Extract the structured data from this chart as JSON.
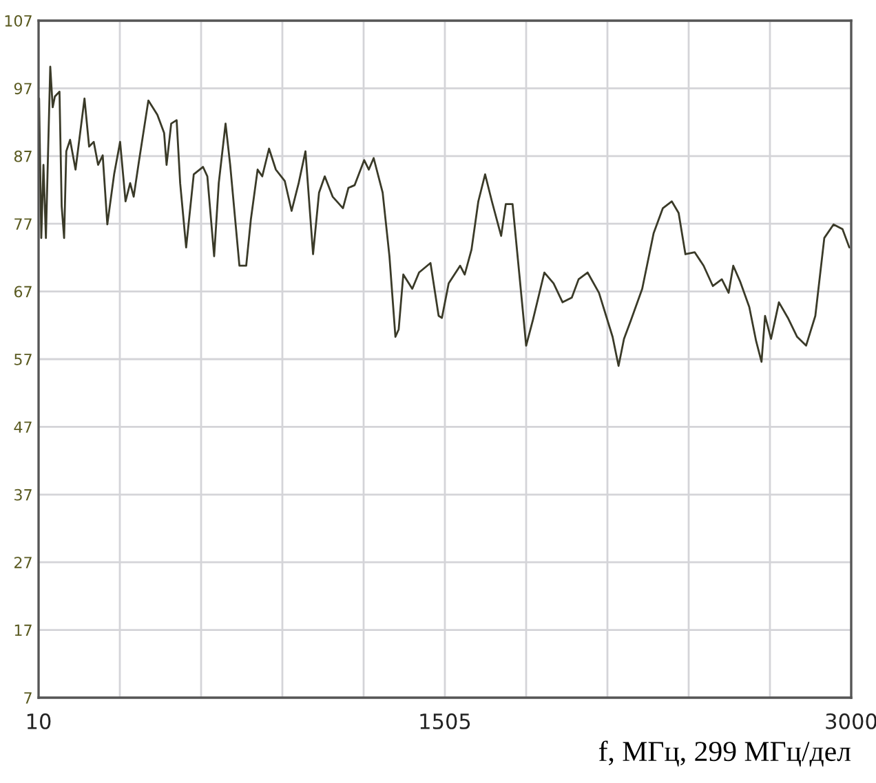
{
  "chart_data": {
    "type": "line",
    "xlabel": "f, МГц, 299 МГц/дел",
    "xlim": [
      10,
      3000
    ],
    "ylim": [
      7,
      107
    ],
    "xticks": [
      10,
      {
        "value": 309,
        "label": null
      },
      {
        "value": 608,
        "label": null
      },
      {
        "value": 907,
        "label": null
      },
      {
        "value": 1206,
        "label": null
      },
      1505,
      {
        "value": 1804,
        "label": null
      },
      {
        "value": 2103,
        "label": null
      },
      {
        "value": 2402,
        "label": null
      },
      {
        "value": 2701,
        "label": null
      },
      3000
    ],
    "yticks": [
      7,
      17,
      27,
      37,
      47,
      57,
      67,
      77,
      87,
      97,
      107
    ],
    "grid": true,
    "marker": "none",
    "line_style": "solid",
    "series": [
      {
        "color": "#3a3a28",
        "x": [
          12,
          20,
          28,
          37,
          53,
          62,
          70,
          87,
          95,
          104,
          112,
          126,
          146,
          179,
          196,
          213,
          229,
          246,
          263,
          288,
          310,
          330,
          347,
          360,
          380,
          414,
          447,
          472,
          481,
          498,
          518,
          531,
          553,
          581,
          615,
          631,
          656,
          673,
          698,
          715,
          749,
          774,
          791,
          816,
          833,
          858,
          883,
          916,
          941,
          967,
          992,
          1020,
          1042,
          1063,
          1092,
          1130,
          1150,
          1173,
          1208,
          1225,
          1243,
          1276,
          1301,
          1323,
          1335,
          1352,
          1385,
          1410,
          1452,
          1482,
          1494,
          1519,
          1561,
          1578,
          1603,
          1628,
          1653,
          1678,
          1712,
          1729,
          1754,
          1779,
          1804,
          1829,
          1871,
          1905,
          1938,
          1972,
          1997,
          2030,
          2072,
          2122,
          2144,
          2164,
          2189,
          2231,
          2273,
          2307,
          2340,
          2365,
          2390,
          2424,
          2457,
          2491,
          2524,
          2549,
          2566,
          2591,
          2625,
          2650,
          2670,
          2683,
          2705,
          2734,
          2767,
          2801,
          2834,
          2868,
          2901,
          2935,
          2968,
          2993
        ],
        "values": [
          95.5,
          74.9,
          85.7,
          74.9,
          100.2,
          94.2,
          95.8,
          96.5,
          79.6,
          74.9,
          87.7,
          89.4,
          85.0,
          95.5,
          88.4,
          89.1,
          85.7,
          87.1,
          76.9,
          84.3,
          89.1,
          80.3,
          83.0,
          81.0,
          86.4,
          95.2,
          93.1,
          90.4,
          85.7,
          91.8,
          92.3,
          83.0,
          73.5,
          84.3,
          85.4,
          84.0,
          72.2,
          83.0,
          91.8,
          85.7,
          70.8,
          70.8,
          77.6,
          85.0,
          84.0,
          88.1,
          85.0,
          83.3,
          78.9,
          83.0,
          87.7,
          72.5,
          81.6,
          84.0,
          81.0,
          79.3,
          82.3,
          82.7,
          86.4,
          85.0,
          86.7,
          81.6,
          72.2,
          60.3,
          61.4,
          69.5,
          67.4,
          69.8,
          71.2,
          63.4,
          63.1,
          68.2,
          70.8,
          69.5,
          73.2,
          80.3,
          84.3,
          80.3,
          75.2,
          79.9,
          79.9,
          69.5,
          59.0,
          62.8,
          69.8,
          68.2,
          65.4,
          66.1,
          68.8,
          69.8,
          66.8,
          60.3,
          56.0,
          60.0,
          62.7,
          67.4,
          75.6,
          79.3,
          80.3,
          78.6,
          72.5,
          72.8,
          70.8,
          67.8,
          68.8,
          66.8,
          70.8,
          68.5,
          64.7,
          59.7,
          56.6,
          63.4,
          60.0,
          65.4,
          63.1,
          60.3,
          59.0,
          63.4,
          74.9,
          76.9,
          76.2,
          73.5
        ]
      }
    ]
  }
}
